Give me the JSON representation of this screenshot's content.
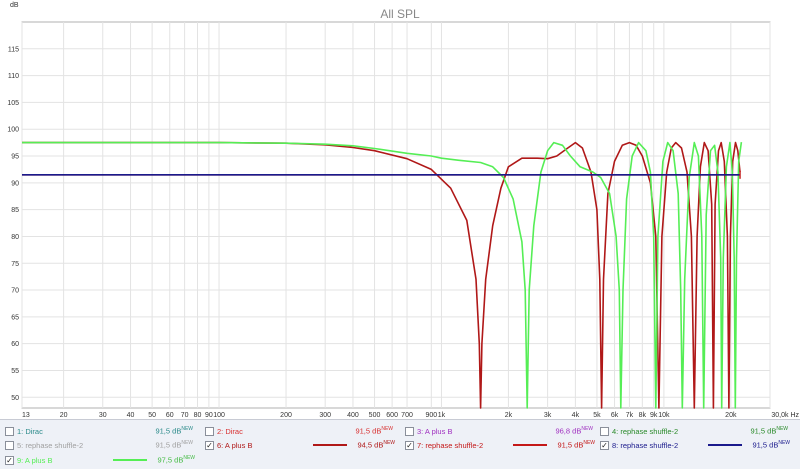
{
  "chart_data": {
    "type": "line",
    "title": "All SPL",
    "ylabel": "dB",
    "xlabel": "",
    "x_unit": "Hz",
    "x_scale": "log",
    "xlim": [
      13,
      30000
    ],
    "ylim": [
      48,
      120
    ],
    "grid": true,
    "y_ticks": [
      50,
      55,
      60,
      65,
      70,
      75,
      80,
      85,
      90,
      95,
      100,
      105,
      110,
      115
    ],
    "x_ticks": [
      {
        "v": 13,
        "l": "13"
      },
      {
        "v": 20,
        "l": "20"
      },
      {
        "v": 30,
        "l": "30"
      },
      {
        "v": 40,
        "l": "40"
      },
      {
        "v": 50,
        "l": "50"
      },
      {
        "v": 60,
        "l": "60"
      },
      {
        "v": 70,
        "l": "70"
      },
      {
        "v": 80,
        "l": "80"
      },
      {
        "v": 90,
        "l": "90"
      },
      {
        "v": 100,
        "l": "100"
      },
      {
        "v": 200,
        "l": "200"
      },
      {
        "v": 300,
        "l": "300"
      },
      {
        "v": 400,
        "l": "400"
      },
      {
        "v": 500,
        "l": "500"
      },
      {
        "v": 600,
        "l": "600"
      },
      {
        "v": 700,
        "l": "700"
      },
      {
        "v": 900,
        "l": "900"
      },
      {
        "v": 1000,
        "l": "1k"
      },
      {
        "v": 2000,
        "l": "2k"
      },
      {
        "v": 3000,
        "l": "3k"
      },
      {
        "v": 4000,
        "l": "4k"
      },
      {
        "v": 5000,
        "l": "5k"
      },
      {
        "v": 6000,
        "l": "6k"
      },
      {
        "v": 7000,
        "l": "7k"
      },
      {
        "v": 8000,
        "l": "8k"
      },
      {
        "v": 9000,
        "l": "9k"
      },
      {
        "v": 10000,
        "l": "10k"
      },
      {
        "v": 20000,
        "l": "20k"
      },
      {
        "v": 30000,
        "l": "30,0k Hz"
      }
    ],
    "series": [
      {
        "name": "6: A plus B",
        "color": "#b01818",
        "points": [
          [
            13,
            97.5
          ],
          [
            100,
            97.5
          ],
          [
            200,
            97.4
          ],
          [
            300,
            97.1
          ],
          [
            400,
            96.6
          ],
          [
            500,
            96
          ],
          [
            700,
            94.5
          ],
          [
            900,
            92.5
          ],
          [
            1100,
            89
          ],
          [
            1300,
            83
          ],
          [
            1430,
            72
          ],
          [
            1480,
            60
          ],
          [
            1500,
            48
          ],
          [
            1520,
            60
          ],
          [
            1580,
            72
          ],
          [
            1700,
            82
          ],
          [
            1850,
            89
          ],
          [
            2000,
            93
          ],
          [
            2300,
            94.6
          ],
          [
            2700,
            94.6
          ],
          [
            3000,
            94.5
          ],
          [
            3300,
            95
          ],
          [
            3700,
            96.5
          ],
          [
            4000,
            97.5
          ],
          [
            4300,
            96.5
          ],
          [
            4700,
            92
          ],
          [
            5000,
            85
          ],
          [
            5150,
            72
          ],
          [
            5250,
            48
          ],
          [
            5350,
            72
          ],
          [
            5600,
            88
          ],
          [
            6000,
            94
          ],
          [
            6500,
            97
          ],
          [
            7000,
            97.5
          ],
          [
            7500,
            97
          ],
          [
            8000,
            95
          ],
          [
            8700,
            90
          ],
          [
            9200,
            80
          ],
          [
            9500,
            48
          ],
          [
            9800,
            80
          ],
          [
            10300,
            92
          ],
          [
            10800,
            96.5
          ],
          [
            11300,
            97.5
          ],
          [
            12000,
            96.5
          ],
          [
            12700,
            92
          ],
          [
            13300,
            80
          ],
          [
            13700,
            48
          ],
          [
            14100,
            80
          ],
          [
            14600,
            93
          ],
          [
            15200,
            97.5
          ],
          [
            15800,
            96
          ],
          [
            16400,
            86
          ],
          [
            16700,
            48
          ],
          [
            17000,
            86
          ],
          [
            17600,
            96
          ],
          [
            18100,
            97.5
          ],
          [
            18700,
            94
          ],
          [
            19300,
            80
          ],
          [
            19600,
            48
          ],
          [
            19900,
            80
          ],
          [
            20400,
            94
          ],
          [
            21000,
            97.5
          ],
          [
            21500,
            96
          ],
          [
            22000,
            92
          ]
        ]
      },
      {
        "name": "9: A plus B",
        "color": "#55ee55",
        "points": [
          [
            13,
            97.5
          ],
          [
            100,
            97.5
          ],
          [
            200,
            97.4
          ],
          [
            300,
            97.2
          ],
          [
            400,
            96.9
          ],
          [
            500,
            96.4
          ],
          [
            700,
            95.5
          ],
          [
            900,
            95
          ],
          [
            1000,
            94.6
          ],
          [
            1200,
            94.2
          ],
          [
            1500,
            93.8
          ],
          [
            1700,
            93
          ],
          [
            1900,
            91
          ],
          [
            2100,
            87
          ],
          [
            2300,
            79
          ],
          [
            2380,
            70
          ],
          [
            2430,
            48
          ],
          [
            2480,
            70
          ],
          [
            2600,
            82
          ],
          [
            2800,
            92
          ],
          [
            3000,
            96
          ],
          [
            3200,
            97.5
          ],
          [
            3500,
            97
          ],
          [
            3800,
            95
          ],
          [
            4200,
            93
          ],
          [
            4800,
            92
          ],
          [
            5200,
            91
          ],
          [
            5700,
            88
          ],
          [
            6100,
            80
          ],
          [
            6300,
            70
          ],
          [
            6400,
            48
          ],
          [
            6550,
            70
          ],
          [
            6800,
            87
          ],
          [
            7200,
            95
          ],
          [
            7700,
            97.5
          ],
          [
            8300,
            96
          ],
          [
            8700,
            92
          ],
          [
            9000,
            80
          ],
          [
            9200,
            48
          ],
          [
            9400,
            80
          ],
          [
            9900,
            94
          ],
          [
            10400,
            97.5
          ],
          [
            11000,
            96
          ],
          [
            11600,
            88
          ],
          [
            11900,
            70
          ],
          [
            12100,
            48
          ],
          [
            12400,
            72
          ],
          [
            13000,
            91
          ],
          [
            13700,
            97.5
          ],
          [
            14300,
            95
          ],
          [
            14800,
            80
          ],
          [
            15100,
            48
          ],
          [
            15500,
            84
          ],
          [
            16200,
            96
          ],
          [
            16900,
            97
          ],
          [
            17500,
            92
          ],
          [
            18000,
            76
          ],
          [
            18200,
            48
          ],
          [
            18500,
            76
          ],
          [
            19100,
            93
          ],
          [
            19800,
            97.5
          ],
          [
            20300,
            92
          ],
          [
            20700,
            76
          ],
          [
            20950,
            48
          ],
          [
            21200,
            76
          ],
          [
            21700,
            94
          ],
          [
            22300,
            97.6
          ]
        ]
      },
      {
        "name": "7: rephase shuffle-2",
        "color": "#c41818",
        "points": [
          [
            13,
            91.5
          ],
          [
            22000,
            91.5
          ]
        ]
      },
      {
        "name": "8: rephase shuffle-2",
        "color": "#1a1a8c",
        "points": [
          [
            13,
            91.5
          ],
          [
            22000,
            91.5
          ]
        ]
      }
    ]
  },
  "legend": [
    {
      "label": "1: Dirac",
      "value": "91,5 dB",
      "sup": "NEW",
      "checked": false,
      "line": false,
      "color": "#2a8a8a",
      "val_color": "#2a8a8a"
    },
    {
      "label": "2: Dirac",
      "value": "91,5 dB",
      "sup": "NEW",
      "checked": false,
      "line": false,
      "color": "#d83030",
      "val_color": "#d83030"
    },
    {
      "label": "3: A plus B",
      "value": "96,8 dB",
      "sup": "NEW",
      "checked": false,
      "line": false,
      "color": "#a030c0",
      "val_color": "#a030c0"
    },
    {
      "label": "4: rephase shuffle-2",
      "value": "91,5 dB",
      "sup": "NEW",
      "checked": false,
      "line": false,
      "color": "#2a8a2a",
      "val_color": "#2a8a2a"
    },
    {
      "label": "5: rephase shuffle-2",
      "value": "91,5 dB",
      "sup": "NEW",
      "checked": false,
      "line": false,
      "color": "#a0a0a0",
      "val_color": "#a0a0a0"
    },
    {
      "label": "6: A plus B",
      "value": "94,5 dB",
      "sup": "NEW",
      "checked": true,
      "line": true,
      "color": "#b01818",
      "val_color": "#b01818"
    },
    {
      "label": "7: rephase shuffle-2",
      "value": "91,5 dB",
      "sup": "NEW",
      "checked": true,
      "line": true,
      "color": "#c41818",
      "val_color": "#c41818"
    },
    {
      "label": "8: rephase shuffle-2",
      "value": "91,5 dB",
      "sup": "NEW",
      "checked": true,
      "line": true,
      "color": "#1a1a8c",
      "val_color": "#1a1a8c"
    },
    {
      "label": "9: A plus B",
      "value": "97,5 dB",
      "sup": "NEW",
      "checked": true,
      "line": true,
      "color": "#55ee55",
      "val_color": "#44bb44"
    }
  ],
  "checkmark": "✓"
}
